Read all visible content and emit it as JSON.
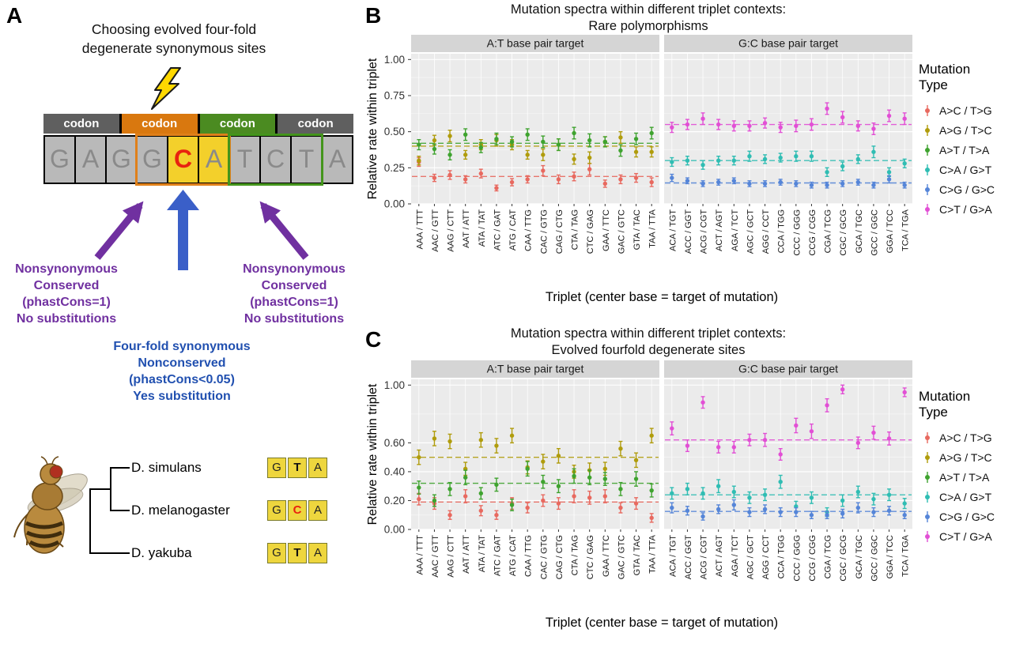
{
  "panel_a": {
    "label": "A",
    "title_lines": [
      "Choosing evolved four-fold",
      "degenerate synonymous sites"
    ],
    "codon_labels": [
      "codon",
      "codon",
      "codon",
      "codon"
    ],
    "codon_colors": [
      "#5f5f5f",
      "#d9780f",
      "#4b8b21",
      "#5f5f5f"
    ],
    "sequence": [
      {
        "ch": "G",
        "bg": "#b9b9b9",
        "fg": "#8a8a8a",
        "bold": false
      },
      {
        "ch": "A",
        "bg": "#b9b9b9",
        "fg": "#8a8a8a",
        "bold": false
      },
      {
        "ch": "G",
        "bg": "#b9b9b9",
        "fg": "#8a8a8a",
        "bold": false
      },
      {
        "ch": "G",
        "bg": "#b9b9b9",
        "fg": "#8a8a8a",
        "bold": false
      },
      {
        "ch": "C",
        "bg": "#f3d02b",
        "fg": "#e8230f",
        "bold": true
      },
      {
        "ch": "A",
        "bg": "#f3d02b",
        "fg": "#8a8a8a",
        "bold": false
      },
      {
        "ch": "T",
        "bg": "#b9b9b9",
        "fg": "#8a8a8a",
        "bold": false
      },
      {
        "ch": "C",
        "bg": "#b9b9b9",
        "fg": "#8a8a8a",
        "bold": false
      },
      {
        "ch": "T",
        "bg": "#b9b9b9",
        "fg": "#8a8a8a",
        "bold": false
      },
      {
        "ch": "A",
        "bg": "#b9b9b9",
        "fg": "#8a8a8a",
        "bold": false
      }
    ],
    "left_annotation_lines": [
      "Nonsynonymous",
      "Conserved",
      "(phastCons=1)",
      "No substitutions"
    ],
    "right_annotation_lines": [
      "Nonsynonymous",
      "Conserved",
      "(phastCons=1)",
      "No substitutions"
    ],
    "center_annotation_lines": [
      "Four-fold synonymous",
      "Nonconserved",
      "(phastCons<0.05)",
      "Yes substitution"
    ],
    "annotation_colors": {
      "side": "#7030a0",
      "center": "#2150b0"
    },
    "species": [
      {
        "name": "D. simulans",
        "triplet": [
          "G",
          "T",
          "A"
        ],
        "center_color": "#111111"
      },
      {
        "name": "D. melanogaster",
        "triplet": [
          "G",
          "C",
          "A"
        ],
        "center_color": "#e8230f"
      },
      {
        "name": "D. yakuba",
        "triplet": [
          "G",
          "T",
          "A"
        ],
        "center_color": "#111111"
      }
    ]
  },
  "legend": {
    "title_lines": [
      "Mutation",
      "Type"
    ],
    "entries": [
      {
        "label": "A>C / T>G",
        "color": "#e8695f"
      },
      {
        "label": "A>G / T>C",
        "color": "#b09c0c"
      },
      {
        "label": "A>T / T>A",
        "color": "#3fa32f"
      },
      {
        "label": "C>A / G>T",
        "color": "#2fbdb3"
      },
      {
        "label": "C>G / G>C",
        "color": "#5585d8"
      },
      {
        "label": "C>T / G>A",
        "color": "#e24fd5"
      }
    ]
  },
  "chart_data": [
    {
      "id": "B",
      "panel_label": "B",
      "type": "scatter",
      "title_lines": [
        "Mutation spectra within different triplet contexts:",
        "Rare polymorphisms"
      ],
      "ylabel": "Relative rate within triplet",
      "xlabel": "Triplet (center base = target of mutation)",
      "ylim": [
        0,
        1.04
      ],
      "yticks": [
        0,
        0.25,
        0.5,
        0.75,
        1.0
      ],
      "ytick_labels": [
        "0.00",
        "0.25",
        "0.50",
        "0.75",
        "1.00"
      ],
      "grid": true,
      "legend_position": "right",
      "facets": [
        {
          "label": "A:T base pair target",
          "categories": [
            "AAA / TTT",
            "AAC / GTT",
            "AAG / CTT",
            "AAT / ATT",
            "ATA / TAT",
            "ATC / GAT",
            "ATG / CAT",
            "CAA / TTG",
            "CAC / GTG",
            "CAG / CTG",
            "CTA / TAG",
            "CTC / GAG",
            "GAA / TTC",
            "GAC / GTC",
            "GTA / TAC",
            "TAA / TTA"
          ],
          "series": [
            {
              "name": "A>C / T>G",
              "color": "#e8695f",
              "mean": 0.19,
              "values": [
                0.29,
                0.18,
                0.2,
                0.17,
                0.21,
                0.11,
                0.15,
                0.17,
                0.23,
                0.17,
                0.19,
                0.24,
                0.14,
                0.17,
                0.18,
                0.15
              ],
              "errors": [
                0.03,
                0.025,
                0.03,
                0.025,
                0.03,
                0.02,
                0.025,
                0.025,
                0.035,
                0.03,
                0.03,
                0.04,
                0.025,
                0.03,
                0.03,
                0.03
              ]
            },
            {
              "name": "A>G / T>C",
              "color": "#b09c0c",
              "mean": 0.4,
              "values": [
                0.3,
                0.44,
                0.47,
                0.34,
                0.41,
                0.44,
                0.41,
                0.34,
                0.34,
                0.41,
                0.31,
                0.32,
                0.43,
                0.46,
                0.36,
                0.36
              ],
              "errors": [
                0.03,
                0.035,
                0.04,
                0.03,
                0.035,
                0.04,
                0.035,
                0.03,
                0.04,
                0.04,
                0.035,
                0.04,
                0.035,
                0.04,
                0.035,
                0.035
              ]
            },
            {
              "name": "A>T / T>A",
              "color": "#3fa32f",
              "mean": 0.42,
              "values": [
                0.41,
                0.38,
                0.34,
                0.48,
                0.39,
                0.45,
                0.43,
                0.48,
                0.43,
                0.41,
                0.49,
                0.44,
                0.43,
                0.37,
                0.45,
                0.49
              ],
              "errors": [
                0.035,
                0.035,
                0.035,
                0.04,
                0.035,
                0.04,
                0.035,
                0.04,
                0.04,
                0.04,
                0.04,
                0.045,
                0.035,
                0.04,
                0.04,
                0.04
              ]
            }
          ]
        },
        {
          "label": "G:C base pair target",
          "categories": [
            "ACA / TGT",
            "ACC / GGT",
            "ACG / CGT",
            "ACT / AGT",
            "AGA / TCT",
            "AGC / GCT",
            "AGG / CCT",
            "CCA / TGG",
            "CCC / GGG",
            "CCG / CGG",
            "CGA / TCG",
            "CGC / GCG",
            "GCA / TGC",
            "GCC / GGC",
            "GGA / TCC",
            "TCA / TGA"
          ],
          "series": [
            {
              "name": "C>A / G>T",
              "color": "#2fbdb3",
              "mean": 0.3,
              "values": [
                0.29,
                0.3,
                0.27,
                0.3,
                0.3,
                0.33,
                0.31,
                0.32,
                0.33,
                0.33,
                0.22,
                0.26,
                0.31,
                0.36,
                0.22,
                0.28
              ],
              "errors": [
                0.03,
                0.03,
                0.03,
                0.03,
                0.03,
                0.035,
                0.03,
                0.03,
                0.035,
                0.035,
                0.03,
                0.03,
                0.03,
                0.04,
                0.03,
                0.03
              ]
            },
            {
              "name": "C>G / G>C",
              "color": "#5585d8",
              "mean": 0.145,
              "values": [
                0.18,
                0.16,
                0.14,
                0.15,
                0.16,
                0.14,
                0.14,
                0.15,
                0.14,
                0.13,
                0.13,
                0.14,
                0.15,
                0.13,
                0.17,
                0.13
              ],
              "errors": [
                0.025,
                0.02,
                0.02,
                0.02,
                0.02,
                0.02,
                0.02,
                0.02,
                0.02,
                0.02,
                0.02,
                0.02,
                0.02,
                0.02,
                0.025,
                0.02
              ]
            },
            {
              "name": "C>T / G>A",
              "color": "#e24fd5",
              "mean": 0.55,
              "values": [
                0.53,
                0.55,
                0.59,
                0.55,
                0.54,
                0.54,
                0.56,
                0.53,
                0.54,
                0.55,
                0.66,
                0.6,
                0.54,
                0.52,
                0.61,
                0.59
              ],
              "errors": [
                0.035,
                0.035,
                0.04,
                0.035,
                0.035,
                0.035,
                0.035,
                0.035,
                0.04,
                0.04,
                0.04,
                0.04,
                0.035,
                0.04,
                0.04,
                0.04
              ]
            }
          ]
        }
      ]
    },
    {
      "id": "C",
      "panel_label": "C",
      "type": "scatter",
      "title_lines": [
        "Mutation spectra within different triplet contexts:",
        "Evolved fourfold degenerate sites"
      ],
      "ylabel": "Relative rate within triplet",
      "xlabel": "Triplet (center base = target of mutation)",
      "ylim": [
        0,
        1.04
      ],
      "yticks": [
        0,
        0.2,
        0.4,
        0.6,
        1.0
      ],
      "ytick_labels": [
        "0.00",
        "0.20",
        "0.40",
        "0.60",
        "1.00"
      ],
      "grid": true,
      "legend_position": "right",
      "facets": [
        {
          "label": "A:T base pair target",
          "categories": [
            "AAA / TTT",
            "AAC / GTT",
            "AAG / CTT",
            "AAT / ATT",
            "ATA / TAT",
            "ATC / GAT",
            "ATG / CAT",
            "CAA / TTG",
            "CAC / GTG",
            "CAG / CTG",
            "CTA / TAG",
            "CTC / GAG",
            "GAA / TTC",
            "GAC / GTC",
            "GTA / TAC",
            "TAA / TTA"
          ],
          "series": [
            {
              "name": "A>C / T>G",
              "color": "#e8695f",
              "mean": 0.19,
              "values": [
                0.21,
                0.18,
                0.1,
                0.23,
                0.13,
                0.1,
                0.18,
                0.15,
                0.2,
                0.18,
                0.23,
                0.22,
                0.23,
                0.15,
                0.18,
                0.08
              ],
              "errors": [
                0.04,
                0.04,
                0.03,
                0.045,
                0.035,
                0.03,
                0.04,
                0.035,
                0.04,
                0.04,
                0.045,
                0.045,
                0.045,
                0.035,
                0.04,
                0.03
              ]
            },
            {
              "name": "A>G / T>C",
              "color": "#b09c0c",
              "mean": 0.5,
              "values": [
                0.5,
                0.63,
                0.61,
                0.42,
                0.62,
                0.58,
                0.65,
                0.43,
                0.47,
                0.51,
                0.4,
                0.41,
                0.42,
                0.56,
                0.48,
                0.65
              ],
              "errors": [
                0.05,
                0.05,
                0.05,
                0.045,
                0.05,
                0.05,
                0.05,
                0.045,
                0.05,
                0.05,
                0.045,
                0.05,
                0.045,
                0.05,
                0.05,
                0.05
              ]
            },
            {
              "name": "A>T / T>A",
              "color": "#3fa32f",
              "mean": 0.32,
              "values": [
                0.29,
                0.2,
                0.28,
                0.36,
                0.25,
                0.31,
                0.17,
                0.42,
                0.33,
                0.3,
                0.37,
                0.36,
                0.35,
                0.28,
                0.35,
                0.27
              ],
              "errors": [
                0.045,
                0.04,
                0.045,
                0.05,
                0.04,
                0.045,
                0.04,
                0.05,
                0.045,
                0.045,
                0.05,
                0.05,
                0.045,
                0.045,
                0.05,
                0.045
              ]
            }
          ]
        },
        {
          "label": "G:C base pair target",
          "categories": [
            "ACA / TGT",
            "ACC / GGT",
            "ACG / CGT",
            "ACT / AGT",
            "AGA / TCT",
            "AGC / GCT",
            "AGG / CCT",
            "CCA / TGG",
            "CCC / GGG",
            "CCG / CGG",
            "CGA / TCG",
            "CGC / GCG",
            "GCA / TGC",
            "GCC / GGC",
            "GGA / TCC",
            "TCA / TGA"
          ],
          "series": [
            {
              "name": "C>A / G>T",
              "color": "#2fbdb3",
              "mean": 0.24,
              "values": [
                0.25,
                0.28,
                0.25,
                0.3,
                0.26,
                0.22,
                0.24,
                0.33,
                0.16,
                0.22,
                0.12,
                0.2,
                0.26,
                0.21,
                0.24,
                0.18
              ],
              "errors": [
                0.04,
                0.04,
                0.04,
                0.045,
                0.04,
                0.04,
                0.04,
                0.045,
                0.035,
                0.04,
                0.03,
                0.04,
                0.04,
                0.04,
                0.04,
                0.035
              ]
            },
            {
              "name": "C>G / G>C",
              "color": "#5585d8",
              "mean": 0.125,
              "values": [
                0.15,
                0.13,
                0.09,
                0.14,
                0.17,
                0.12,
                0.14,
                0.12,
                0.12,
                0.1,
                0.1,
                0.11,
                0.15,
                0.12,
                0.13,
                0.1
              ],
              "errors": [
                0.035,
                0.03,
                0.025,
                0.03,
                0.035,
                0.03,
                0.03,
                0.03,
                0.03,
                0.025,
                0.025,
                0.03,
                0.035,
                0.03,
                0.03,
                0.025
              ]
            },
            {
              "name": "C>T / G>A",
              "color": "#e24fd5",
              "mean": 0.62,
              "values": [
                0.7,
                0.58,
                0.88,
                0.57,
                0.57,
                0.62,
                0.62,
                0.52,
                0.72,
                0.68,
                0.86,
                0.97,
                0.6,
                0.67,
                0.63,
                0.95
              ],
              "errors": [
                0.045,
                0.04,
                0.04,
                0.04,
                0.04,
                0.04,
                0.045,
                0.04,
                0.05,
                0.05,
                0.045,
                0.03,
                0.04,
                0.045,
                0.045,
                0.03
              ]
            }
          ]
        }
      ]
    }
  ]
}
